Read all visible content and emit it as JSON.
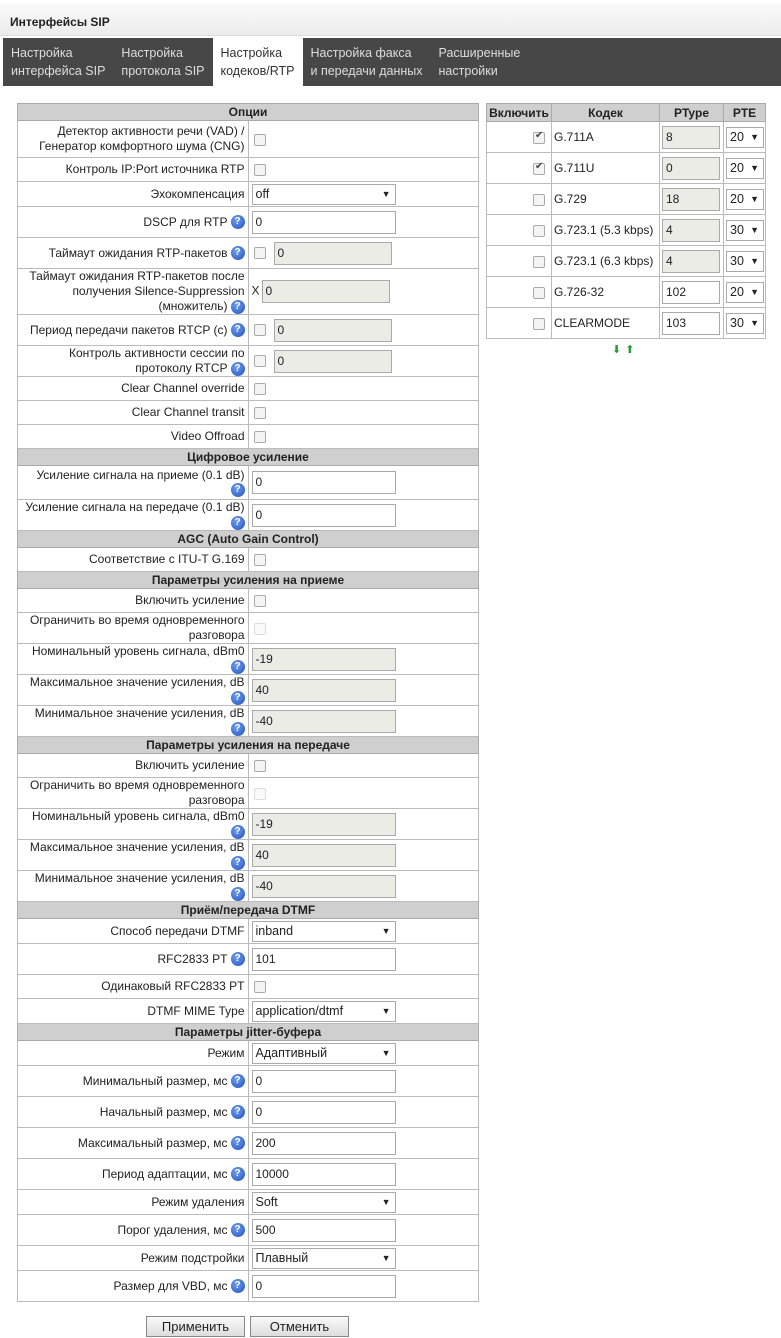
{
  "window": {
    "title": "Интерфейсы SIP"
  },
  "tabs": [
    {
      "l1": "Настройка",
      "l2": "интерфейса SIP",
      "active": false
    },
    {
      "l1": "Настройка",
      "l2": "протокола SIP",
      "active": false
    },
    {
      "l1": "Настройка",
      "l2": "кодеков/RTP",
      "active": true
    },
    {
      "l1": "Настройка факса",
      "l2": "и передачи данных",
      "active": false
    },
    {
      "l1": "Расширенные",
      "l2": "настройки",
      "active": false
    }
  ],
  "options": [
    {
      "type": "header",
      "label": "Опции"
    },
    {
      "type": "check",
      "label": "Детектор активности речи (VAD) / Генератор комфортного шума (CNG)",
      "checked": false,
      "h": 37
    },
    {
      "type": "check",
      "label": "Контроль IP:Port источника RTP",
      "checked": false
    },
    {
      "type": "select",
      "label": "Эхокомпенсация",
      "value": "off"
    },
    {
      "type": "input",
      "label": "DSCP для RTP",
      "value": "0",
      "help": true
    },
    {
      "type": "checkinput",
      "label": "Таймаут ожидания RTP-пакетов",
      "value": "0",
      "help": true
    },
    {
      "type": "xinput",
      "label": "Таймаут ожидания RTP-пакетов после получения Silence-Suppression (множитель)",
      "prefix": "X",
      "value": "0",
      "help": true,
      "h": 40
    },
    {
      "type": "checkinput",
      "label": "Период передачи пакетов RTCP (c)",
      "value": "0",
      "help": true
    },
    {
      "type": "checkinput",
      "label": "Контроль активности сессии по протоколу RTCP",
      "value": "0",
      "help": true
    },
    {
      "type": "check",
      "label": "Clear Channel override",
      "checked": false
    },
    {
      "type": "check",
      "label": "Clear Channel transit",
      "checked": false
    },
    {
      "type": "check",
      "label": "Video Offroad",
      "checked": false
    },
    {
      "type": "header",
      "label": "Цифровое усиление"
    },
    {
      "type": "input",
      "label": "Усиление сигнала на приеме (0.1 dB)",
      "value": "0",
      "help": true,
      "h": 34
    },
    {
      "type": "input",
      "label": "Усиление сигнала на передаче (0.1 dB)",
      "value": "0",
      "help": true
    },
    {
      "type": "header",
      "label": "AGC (Auto Gain Control)"
    },
    {
      "type": "check",
      "label": "Соответствие с ITU-T G.169",
      "checked": false
    },
    {
      "type": "header",
      "label": "Параметры усиления на приеме"
    },
    {
      "type": "check",
      "label": "Включить усиление",
      "checked": false
    },
    {
      "type": "check",
      "label": "Ограничить во время одновременного разговора",
      "checked": false,
      "disabled": true
    },
    {
      "type": "input",
      "label": "Номинальный уровень сигнала, dBm0",
      "value": "-19",
      "help": true,
      "ro": true
    },
    {
      "type": "input",
      "label": "Максимальное значение усиления, dB",
      "value": "40",
      "help": true,
      "ro": true
    },
    {
      "type": "input",
      "label": "Минимальное значение усиления, dB",
      "value": "-40",
      "help": true,
      "ro": true
    },
    {
      "type": "header",
      "label": "Параметры усиления на передаче"
    },
    {
      "type": "check",
      "label": "Включить усиление",
      "checked": false
    },
    {
      "type": "check",
      "label": "Ограничить во время одновременного разговора",
      "checked": false,
      "disabled": true
    },
    {
      "type": "input",
      "label": "Номинальный уровень сигнала, dBm0",
      "value": "-19",
      "help": true,
      "ro": true
    },
    {
      "type": "input",
      "label": "Максимальное значение усиления, dB",
      "value": "40",
      "help": true,
      "ro": true
    },
    {
      "type": "input",
      "label": "Минимальное значение усиления, dB",
      "value": "-40",
      "help": true,
      "ro": true
    },
    {
      "type": "header",
      "label": "Приём/передача DTMF"
    },
    {
      "type": "select",
      "label": "Способ передачи DTMF",
      "value": "inband"
    },
    {
      "type": "input",
      "label": "RFC2833 PT",
      "value": "101",
      "help": true
    },
    {
      "type": "check",
      "label": "Одинаковый RFC2833 PT",
      "checked": false
    },
    {
      "type": "select",
      "label": "DTMF MIME Type",
      "value": "application/dtmf"
    },
    {
      "type": "header",
      "label": "Параметры jitter-буфера"
    },
    {
      "type": "select",
      "label": "Режим",
      "value": "Адаптивный"
    },
    {
      "type": "input",
      "label": "Минимальный размер, мс",
      "value": "0",
      "help": true
    },
    {
      "type": "input",
      "label": "Начальный размер, мс",
      "value": "0",
      "help": true
    },
    {
      "type": "input",
      "label": "Максимальный размер, мс",
      "value": "200",
      "help": true
    },
    {
      "type": "input",
      "label": "Период адаптации, мс",
      "value": "10000",
      "help": true
    },
    {
      "type": "select",
      "label": "Режим удаления",
      "value": "Soft"
    },
    {
      "type": "input",
      "label": "Порог удаления, мс",
      "value": "500",
      "help": true
    },
    {
      "type": "select",
      "label": "Режим подстройки",
      "value": "Плавный"
    },
    {
      "type": "input",
      "label": "Размер для VBD, мс",
      "value": "0",
      "help": true
    }
  ],
  "codecs": {
    "headers": [
      "Включить",
      "Кодек",
      "PType",
      "PTE"
    ],
    "rows": [
      {
        "enabled": true,
        "name": "G.711A",
        "ptype": "8",
        "ptype_ro": true,
        "pte": "20"
      },
      {
        "enabled": true,
        "name": "G.711U",
        "ptype": "0",
        "ptype_ro": true,
        "pte": "20"
      },
      {
        "enabled": false,
        "name": "G.729",
        "ptype": "18",
        "ptype_ro": true,
        "pte": "20"
      },
      {
        "enabled": false,
        "name": "G.723.1 (5.3 kbps)",
        "ptype": "4",
        "ptype_ro": true,
        "pte": "30"
      },
      {
        "enabled": false,
        "name": "G.723.1 (6.3 kbps)",
        "ptype": "4",
        "ptype_ro": true,
        "pte": "30"
      },
      {
        "enabled": false,
        "name": "G.726-32",
        "ptype": "102",
        "ptype_ro": false,
        "pte": "20"
      },
      {
        "enabled": false,
        "name": "CLEARMODE",
        "ptype": "103",
        "ptype_ro": false,
        "pte": "30"
      }
    ],
    "move_icons": [
      "arrow-down-icon",
      "arrow-up-icon"
    ]
  },
  "buttons": {
    "apply": "Применить",
    "cancel": "Отменить"
  }
}
